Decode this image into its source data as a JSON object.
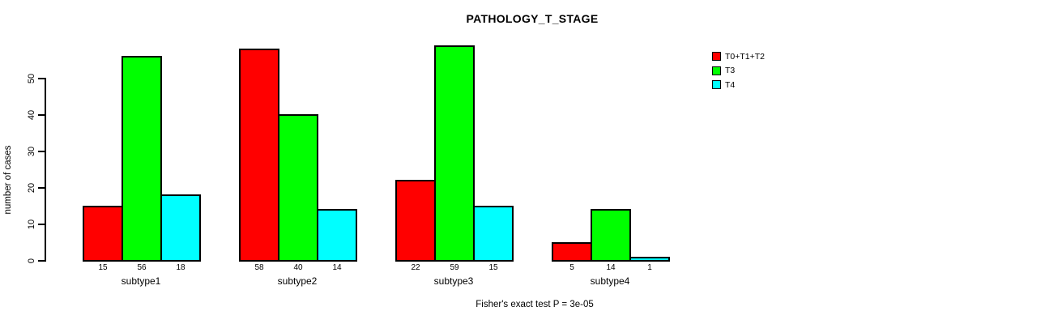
{
  "title": "PATHOLOGY_T_STAGE",
  "footer": "Fisher's exact test P = 3e-05",
  "y_axis": {
    "label": "number of cases",
    "ticks": [
      "0",
      "10",
      "20",
      "30",
      "40",
      "50"
    ]
  },
  "legend": {
    "items": [
      {
        "label": "T0+T1+T2",
        "color": "#ff0000"
      },
      {
        "label": "T3",
        "color": "#00ff00"
      },
      {
        "label": "T4",
        "color": "#00ffff"
      }
    ]
  },
  "chart_data": {
    "type": "bar",
    "title": "PATHOLOGY_T_STAGE",
    "categories": [
      "subtype1",
      "subtype2",
      "subtype3",
      "subtype4"
    ],
    "series": [
      {
        "name": "T0+T1+T2",
        "color": "#ff0000",
        "values": [
          15,
          58,
          22,
          5
        ]
      },
      {
        "name": "T3",
        "color": "#00ff00",
        "values": [
          56,
          40,
          59,
          14
        ]
      },
      {
        "name": "T4",
        "color": "#00ffff",
        "values": [
          18,
          14,
          15,
          1
        ]
      }
    ],
    "bar_value_labels": [
      [
        15,
        56,
        18
      ],
      [
        58,
        40,
        14
      ],
      [
        22,
        59,
        15
      ],
      [
        5,
        14,
        1
      ]
    ],
    "xlabel": "",
    "ylabel": "number of cases",
    "ylim": [
      0,
      59
    ],
    "yticks": [
      0,
      10,
      20,
      30,
      40,
      50
    ],
    "grid": false,
    "legend_position": "right",
    "annotation": "Fisher's exact test P = 3e-05",
    "background": "#ffffff",
    "bar_border_color": "#000000"
  }
}
